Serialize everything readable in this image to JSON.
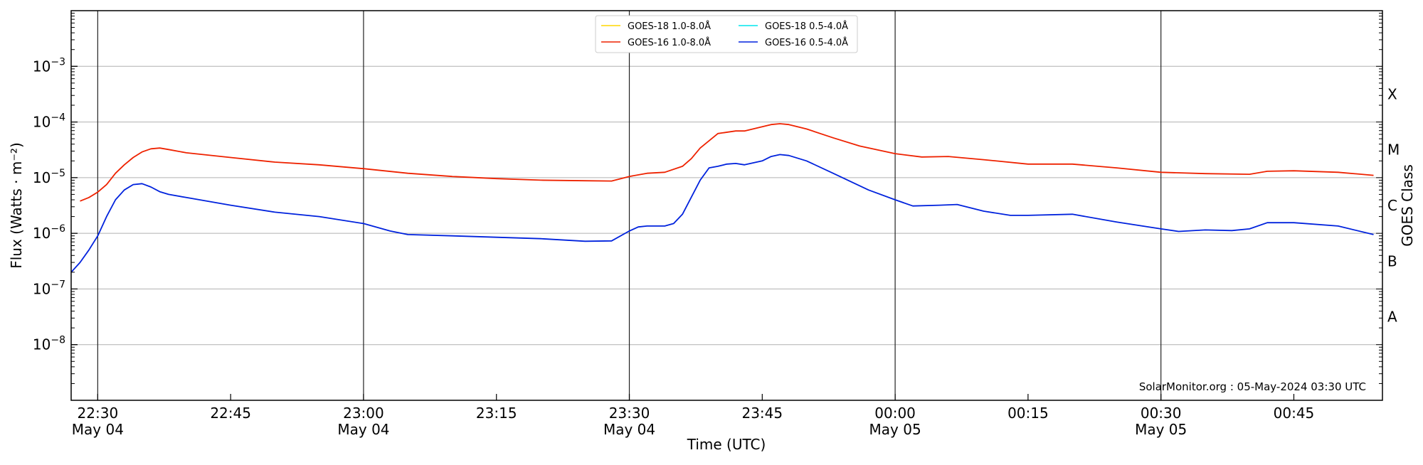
{
  "chart_data": {
    "type": "line",
    "ylabel": "Flux (Watts · m⁻²)",
    "xlabel": "Time (UTC)",
    "right_label": "GOES Class",
    "credit": "SolarMonitor.org : 05-May-2024 03:30 UTC",
    "y_scale": "log",
    "ylim": [
      1e-09,
      0.01
    ],
    "xlim": [
      "2024-05-04 22:27",
      "2024-05-05 00:55"
    ],
    "grid": "horizontal",
    "legend_position": "upper-center",
    "y_ticks": [
      {
        "value": 1e-08,
        "base": "10",
        "exp": "−8"
      },
      {
        "value": 1e-07,
        "base": "10",
        "exp": "−7"
      },
      {
        "value": 1e-06,
        "base": "10",
        "exp": "−6"
      },
      {
        "value": 1e-05,
        "base": "10",
        "exp": "−5"
      },
      {
        "value": 0.0001,
        "base": "10",
        "exp": "−4"
      },
      {
        "value": 0.001,
        "base": "10",
        "exp": "−3"
      }
    ],
    "x_ticks": [
      {
        "time": "2024-05-04 22:30",
        "label": "22:30",
        "date": "May 04"
      },
      {
        "time": "2024-05-04 22:45",
        "label": "22:45",
        "date": ""
      },
      {
        "time": "2024-05-04 23:00",
        "label": "23:00",
        "date": "May 04"
      },
      {
        "time": "2024-05-04 23:15",
        "label": "23:15",
        "date": ""
      },
      {
        "time": "2024-05-04 23:30",
        "label": "23:30",
        "date": "May 04"
      },
      {
        "time": "2024-05-04 23:45",
        "label": "23:45",
        "date": ""
      },
      {
        "time": "2024-05-05 00:00",
        "label": "00:00",
        "date": "May 05"
      },
      {
        "time": "2024-05-05 00:15",
        "label": "00:15",
        "date": ""
      },
      {
        "time": "2024-05-05 00:30",
        "label": "00:30",
        "date": "May 05"
      },
      {
        "time": "2024-05-05 00:45",
        "label": "00:45",
        "date": ""
      }
    ],
    "vlines": [
      "2024-05-04 22:30",
      "2024-05-04 23:00",
      "2024-05-04 23:30",
      "2024-05-05 00:00",
      "2024-05-05 00:30"
    ],
    "classes": [
      {
        "label": "A",
        "value": 3.16e-08
      },
      {
        "label": "B",
        "value": 3.16e-07
      },
      {
        "label": "C",
        "value": 3.16e-06
      },
      {
        "label": "M",
        "value": 3.16e-05
      },
      {
        "label": "X",
        "value": 0.000316
      }
    ],
    "series": [
      {
        "name": "GOES-18 1.0-8.0Å",
        "color": "#ffd700",
        "x": [],
        "y": []
      },
      {
        "name": "GOES-18 0.5-4.0Å",
        "color": "#00e5ee",
        "x": [],
        "y": []
      },
      {
        "name": "GOES-16 1.0-8.0Å",
        "color": "#ee2200",
        "x": [
          "2024-05-04 22:28",
          "2024-05-04 22:29",
          "2024-05-04 22:30",
          "2024-05-04 22:31",
          "2024-05-04 22:32",
          "2024-05-04 22:33",
          "2024-05-04 22:34",
          "2024-05-04 22:35",
          "2024-05-04 22:36",
          "2024-05-04 22:37",
          "2024-05-04 22:38",
          "2024-05-04 22:40",
          "2024-05-04 22:45",
          "2024-05-04 22:50",
          "2024-05-04 22:55",
          "2024-05-04 23:00",
          "2024-05-04 23:05",
          "2024-05-04 23:10",
          "2024-05-04 23:15",
          "2024-05-04 23:20",
          "2024-05-04 23:25",
          "2024-05-04 23:28",
          "2024-05-04 23:30",
          "2024-05-04 23:32",
          "2024-05-04 23:34",
          "2024-05-04 23:36",
          "2024-05-04 23:37",
          "2024-05-04 23:38",
          "2024-05-04 23:40",
          "2024-05-04 23:42",
          "2024-05-04 23:43",
          "2024-05-04 23:45",
          "2024-05-04 23:46",
          "2024-05-04 23:47",
          "2024-05-04 23:48",
          "2024-05-04 23:50",
          "2024-05-04 23:53",
          "2024-05-04 23:56",
          "2024-05-05 00:00",
          "2024-05-05 00:03",
          "2024-05-05 00:06",
          "2024-05-05 00:10",
          "2024-05-05 00:15",
          "2024-05-05 00:20",
          "2024-05-05 00:25",
          "2024-05-05 00:30",
          "2024-05-05 00:35",
          "2024-05-05 00:40",
          "2024-05-05 00:42",
          "2024-05-05 00:45",
          "2024-05-05 00:50",
          "2024-05-05 00:54"
        ],
        "y": [
          3.8e-06,
          4.4e-06,
          5.5e-06,
          7.5e-06,
          1.2e-05,
          1.7e-05,
          2.3e-05,
          2.9e-05,
          3.3e-05,
          3.4e-05,
          3.2e-05,
          2.8e-05,
          2.3e-05,
          1.9e-05,
          1.7e-05,
          1.45e-05,
          1.2e-05,
          1.05e-05,
          9.6e-06,
          9e-06,
          8.8e-06,
          8.7e-06,
          1.05e-05,
          1.2e-05,
          1.25e-05,
          1.6e-05,
          2.2e-05,
          3.4e-05,
          6.2e-05,
          6.9e-05,
          6.9e-05,
          8.2e-05,
          9e-05,
          9.3e-05,
          9e-05,
          7.5e-05,
          5.2e-05,
          3.7e-05,
          2.7e-05,
          2.35e-05,
          2.4e-05,
          2.1e-05,
          1.75e-05,
          1.75e-05,
          1.5e-05,
          1.25e-05,
          1.18e-05,
          1.15e-05,
          1.3e-05,
          1.33e-05,
          1.25e-05,
          1.1e-05
        ]
      },
      {
        "name": "GOES-16 0.5-4.0Å",
        "color": "#0022dd",
        "x": [
          "2024-05-04 22:27",
          "2024-05-04 22:28",
          "2024-05-04 22:29",
          "2024-05-04 22:30",
          "2024-05-04 22:31",
          "2024-05-04 22:32",
          "2024-05-04 22:33",
          "2024-05-04 22:34",
          "2024-05-04 22:35",
          "2024-05-04 22:36",
          "2024-05-04 22:37",
          "2024-05-04 22:38",
          "2024-05-04 22:40",
          "2024-05-04 22:45",
          "2024-05-04 22:50",
          "2024-05-04 22:55",
          "2024-05-04 23:00",
          "2024-05-04 23:03",
          "2024-05-04 23:05",
          "2024-05-04 23:10",
          "2024-05-04 23:15",
          "2024-05-04 23:20",
          "2024-05-04 23:25",
          "2024-05-04 23:28",
          "2024-05-04 23:30",
          "2024-05-04 23:31",
          "2024-05-04 23:32",
          "2024-05-04 23:34",
          "2024-05-04 23:35",
          "2024-05-04 23:36",
          "2024-05-04 23:38",
          "2024-05-04 23:39",
          "2024-05-04 23:40",
          "2024-05-04 23:41",
          "2024-05-04 23:42",
          "2024-05-04 23:43",
          "2024-05-04 23:45",
          "2024-05-04 23:46",
          "2024-05-04 23:47",
          "2024-05-04 23:48",
          "2024-05-04 23:50",
          "2024-05-04 23:53",
          "2024-05-04 23:57",
          "2024-05-05 00:00",
          "2024-05-05 00:02",
          "2024-05-05 00:05",
          "2024-05-05 00:07",
          "2024-05-05 00:10",
          "2024-05-05 00:13",
          "2024-05-05 00:15",
          "2024-05-05 00:20",
          "2024-05-05 00:25",
          "2024-05-05 00:30",
          "2024-05-05 00:32",
          "2024-05-05 00:35",
          "2024-05-05 00:38",
          "2024-05-05 00:40",
          "2024-05-05 00:42",
          "2024-05-05 00:45",
          "2024-05-05 00:50",
          "2024-05-05 00:54"
        ],
        "y": [
          2e-07,
          3e-07,
          5e-07,
          9e-07,
          2e-06,
          4e-06,
          6e-06,
          7.5e-06,
          7.8e-06,
          6.8e-06,
          5.6e-06,
          5e-06,
          4.4e-06,
          3.2e-06,
          2.4e-06,
          2e-06,
          1.5e-06,
          1.1e-06,
          9.5e-07,
          9e-07,
          8.5e-07,
          8e-07,
          7.2e-07,
          7.3e-07,
          1.1e-06,
          1.3e-06,
          1.35e-06,
          1.35e-06,
          1.5e-06,
          2.2e-06,
          9e-06,
          1.5e-05,
          1.6e-05,
          1.75e-05,
          1.8e-05,
          1.7e-05,
          2e-05,
          2.4e-05,
          2.6e-05,
          2.5e-05,
          2e-05,
          1.2e-05,
          6e-06,
          4e-06,
          3.1e-06,
          3.2e-06,
          3.3e-06,
          2.5e-06,
          2.1e-06,
          2.1e-06,
          2.2e-06,
          1.6e-06,
          1.2e-06,
          1.08e-06,
          1.15e-06,
          1.12e-06,
          1.2e-06,
          1.55e-06,
          1.55e-06,
          1.35e-06,
          9.5e-07
        ]
      }
    ]
  }
}
